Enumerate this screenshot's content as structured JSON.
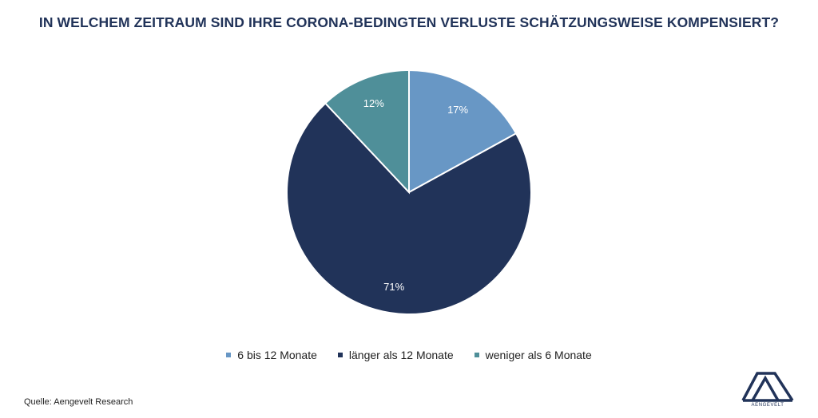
{
  "chart_data": {
    "type": "pie",
    "title": "IN WELCHEM ZEITRAUM SIND IHRE CORONA-BEDINGTEN VERLUSTE SCHÄTZUNGSWEISE KOMPENSIERT?",
    "slices": [
      {
        "name": "6 bis 12 Monate",
        "value": 17,
        "label": "17%",
        "color": "#6897C5"
      },
      {
        "name": "länger als 12 Monate",
        "value": 71,
        "label": "71%",
        "color": "#213359"
      },
      {
        "name": "weniger als 6 Monate",
        "value": 12,
        "label": "12%",
        "color": "#4F8F99"
      }
    ],
    "legend_position": "bottom",
    "start_angle": "12 o'clock",
    "direction": "clockwise"
  },
  "footer": {
    "source": "Quelle: Aengevelt Research"
  },
  "logo": {
    "text": "AENGEVELT",
    "color": "#213359"
  }
}
